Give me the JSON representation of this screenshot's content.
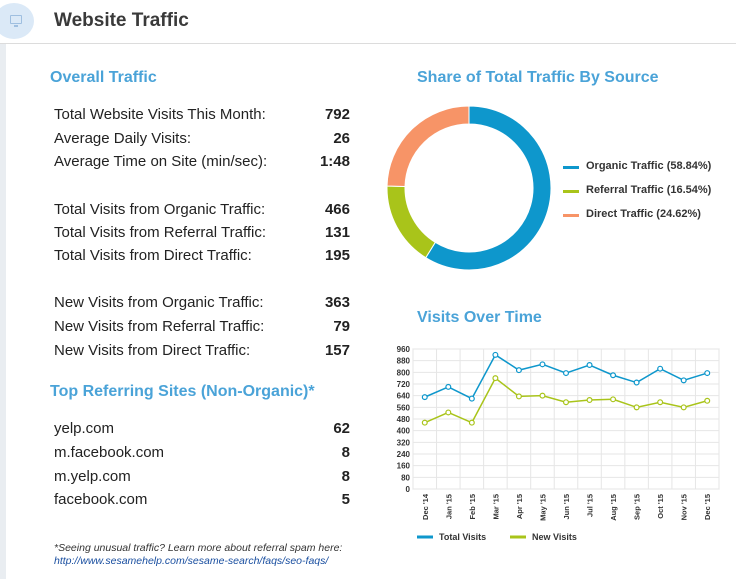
{
  "header": {
    "title": "Website Traffic",
    "icon": "monitor-icon"
  },
  "overall": {
    "title": "Overall Traffic",
    "rows": [
      {
        "label": "Total Website Visits This Month:",
        "value": "792"
      },
      {
        "label": "Average Daily Visits:",
        "value": "26"
      },
      {
        "label": "Average Time on Site (min/sec):",
        "value": "1:48"
      },
      {
        "label": "Total Visits from Organic Traffic:",
        "value": "466"
      },
      {
        "label": "Total Visits from Referral Traffic:",
        "value": "131"
      },
      {
        "label": "Total Visits from Direct Traffic:",
        "value": "195"
      },
      {
        "label": "New Visits from Organic Traffic:",
        "value": "363"
      },
      {
        "label": "New Visits from Referral Traffic:",
        "value": "79"
      },
      {
        "label": "New Visits from Direct Traffic:",
        "value": "157"
      }
    ]
  },
  "referring": {
    "title": "Top Referring Sites (Non-Organic)*",
    "rows": [
      {
        "label": "yelp.com",
        "value": "62"
      },
      {
        "label": "m.facebook.com",
        "value": "8"
      },
      {
        "label": "m.yelp.com",
        "value": "8"
      },
      {
        "label": "facebook.com",
        "value": "5"
      }
    ]
  },
  "footnote": {
    "text": "*Seeing unusual traffic? Learn more about referral spam here:",
    "link": "http://www.sesamehelp.com/sesame-search/faqs/seo-faqs/"
  },
  "chart_data": [
    {
      "type": "pie",
      "title": "Share of Total Traffic By Source",
      "donut": true,
      "legend_position": "right",
      "slices": [
        {
          "name": "Organic Traffic (58.84%)",
          "value": 58.84,
          "color": "#0e97cc"
        },
        {
          "name": "Referral Traffic (16.54%)",
          "value": 16.54,
          "color": "#a9c41a"
        },
        {
          "name": "Direct Traffic (24.62%)",
          "value": 24.62,
          "color": "#f79467"
        }
      ]
    },
    {
      "type": "line",
      "title": "Visits Over Time",
      "categories": [
        "Dec '14",
        "Jan '15",
        "Feb '15",
        "Mar '15",
        "Apr '15",
        "May '15",
        "Jun '15",
        "Jul '15",
        "Aug '15",
        "Sep '15",
        "Oct '15",
        "Nov '15",
        "Dec '15"
      ],
      "ylim": [
        0,
        960
      ],
      "yticks": [
        "0",
        "80",
        "160",
        "240",
        "320",
        "400",
        "480",
        "560",
        "640",
        "720",
        "800",
        "880",
        "960"
      ],
      "grid": true,
      "legend_position": "bottom",
      "series": [
        {
          "name": "Total Visits",
          "color": "#0e97cc",
          "values": [
            630,
            700,
            620,
            920,
            815,
            855,
            795,
            850,
            780,
            730,
            825,
            745,
            795
          ]
        },
        {
          "name": "New Visits",
          "color": "#a9c41a",
          "values": [
            455,
            525,
            455,
            760,
            635,
            640,
            595,
            610,
            615,
            560,
            595,
            560,
            605
          ]
        }
      ]
    }
  ]
}
